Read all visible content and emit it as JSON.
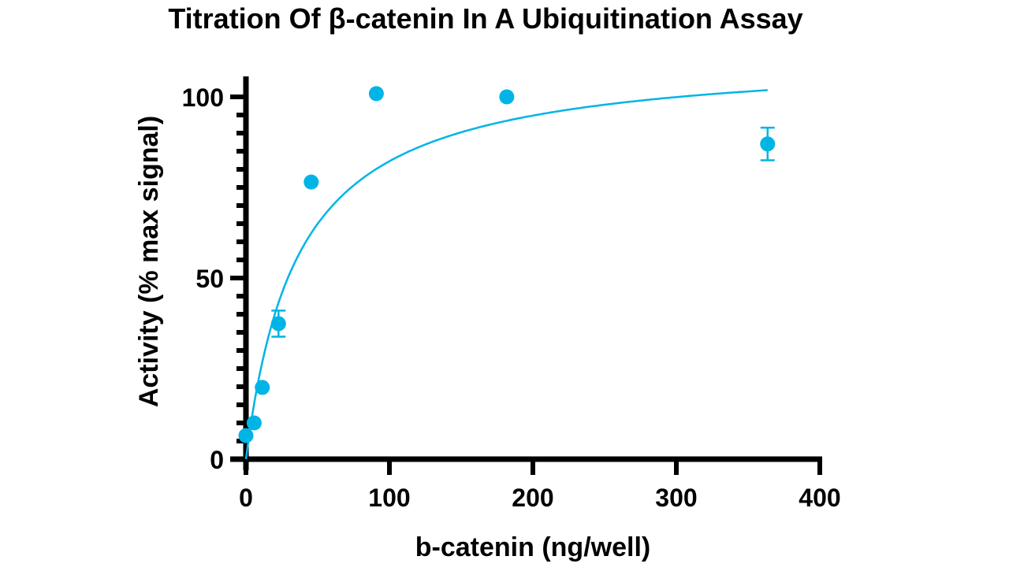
{
  "chart_data": {
    "type": "scatter",
    "title": "Titration Of β-catenin In A Ubiquitination Assay",
    "xlabel": "b-catenin (ng/well)",
    "ylabel": "Activity (% max signal)",
    "xlim": [
      0,
      400
    ],
    "ylim": [
      0,
      100
    ],
    "xticks": [
      "0",
      "100",
      "200",
      "300",
      "400"
    ],
    "yticks": [
      "0",
      "50",
      "100"
    ],
    "y_minor_step": 5,
    "grid": false,
    "color": "#00B4E6",
    "points": [
      {
        "x": 0,
        "y": 6.5,
        "err": 0
      },
      {
        "x": 5.7,
        "y": 10,
        "err": 0
      },
      {
        "x": 11.4,
        "y": 19.8,
        "err": 0
      },
      {
        "x": 22.7,
        "y": 37.4,
        "err": 3.6
      },
      {
        "x": 45.5,
        "y": 76.5,
        "err": 0
      },
      {
        "x": 90.9,
        "y": 100.9,
        "err": 0
      },
      {
        "x": 181.8,
        "y": 100,
        "err": 0
      },
      {
        "x": 363.6,
        "y": 87,
        "err": 4.5
      }
    ],
    "fit": {
      "model": "hyperbolic",
      "vmax": 112,
      "km": 36.2,
      "x_range": [
        0,
        363.6
      ]
    }
  }
}
